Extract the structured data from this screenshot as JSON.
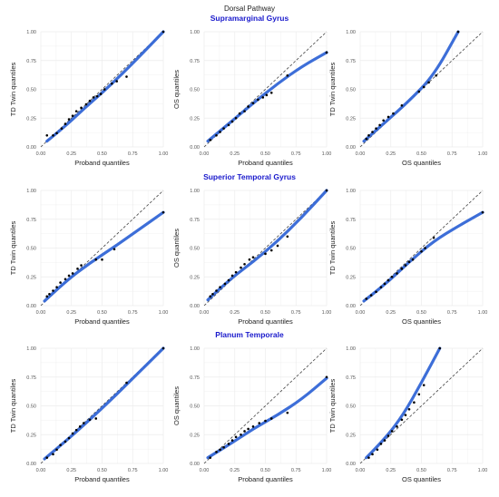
{
  "figure": {
    "title": "Dorsal Pathway",
    "row_titles": [
      "Supramarginal Gyrus",
      "Superior Temporal Gyrus",
      "Planum Temporale"
    ],
    "colors": {
      "curve": "#3366d6",
      "points": "#000000",
      "reference": "#444444",
      "row_title": "#1a1acc",
      "grid": "#ececec",
      "tick_text": "#555555"
    }
  },
  "chart_data": [
    {
      "type": "scatter",
      "row": 0,
      "col": 0,
      "xlabel": "Proband quantiles",
      "ylabel": "TD Twin quantiles",
      "xlim": [
        0,
        1
      ],
      "ylim": [
        0,
        1
      ],
      "xticks": [
        "0.00",
        "0.25",
        "0.50",
        "0.75",
        "1.00"
      ],
      "yticks": [
        "0.00",
        "0.25",
        "0.50",
        "0.75",
        "1.00"
      ],
      "points": [
        [
          0.05,
          0.1
        ],
        [
          0.1,
          0.1
        ],
        [
          0.13,
          0.12
        ],
        [
          0.17,
          0.16
        ],
        [
          0.2,
          0.2
        ],
        [
          0.23,
          0.24
        ],
        [
          0.26,
          0.27
        ],
        [
          0.29,
          0.31
        ],
        [
          0.33,
          0.34
        ],
        [
          0.37,
          0.37
        ],
        [
          0.4,
          0.4
        ],
        [
          0.43,
          0.43
        ],
        [
          0.46,
          0.44
        ],
        [
          0.49,
          0.46
        ],
        [
          0.52,
          0.5
        ],
        [
          0.58,
          0.55
        ],
        [
          0.62,
          0.57
        ],
        [
          0.7,
          0.61
        ],
        [
          1.0,
          1.0
        ]
      ],
      "curve": [
        [
          0.05,
          0.05
        ],
        [
          0.2,
          0.18
        ],
        [
          0.35,
          0.33
        ],
        [
          0.5,
          0.47
        ],
        [
          0.65,
          0.62
        ],
        [
          0.8,
          0.78
        ],
        [
          1.0,
          1.0
        ]
      ],
      "grid": true
    },
    {
      "type": "scatter",
      "row": 0,
      "col": 1,
      "xlabel": "Proband quantiles",
      "ylabel": "OS quantiles",
      "xlim": [
        0,
        1
      ],
      "ylim": [
        0,
        1
      ],
      "xticks": [
        "0.00",
        "0.25",
        "0.50",
        "0.75",
        "1.00"
      ],
      "yticks": [
        "0.00",
        "0.25",
        "0.50",
        "0.75",
        "1.00"
      ],
      "points": [
        [
          0.05,
          0.06
        ],
        [
          0.1,
          0.1
        ],
        [
          0.13,
          0.13
        ],
        [
          0.16,
          0.16
        ],
        [
          0.2,
          0.19
        ],
        [
          0.23,
          0.22
        ],
        [
          0.26,
          0.25
        ],
        [
          0.29,
          0.29
        ],
        [
          0.33,
          0.31
        ],
        [
          0.36,
          0.35
        ],
        [
          0.4,
          0.38
        ],
        [
          0.44,
          0.41
        ],
        [
          0.48,
          0.43
        ],
        [
          0.51,
          0.45
        ],
        [
          0.55,
          0.47
        ],
        [
          0.68,
          0.62
        ],
        [
          1.0,
          0.82
        ]
      ],
      "curve": [
        [
          0.03,
          0.05
        ],
        [
          0.2,
          0.2
        ],
        [
          0.4,
          0.38
        ],
        [
          0.6,
          0.55
        ],
        [
          0.8,
          0.7
        ],
        [
          1.0,
          0.82
        ]
      ],
      "grid": true
    },
    {
      "type": "scatter",
      "row": 0,
      "col": 2,
      "xlabel": "OS quantiles",
      "ylabel": "TD Twin quantiles",
      "xlim": [
        0,
        1
      ],
      "ylim": [
        0,
        1
      ],
      "xticks": [
        "0.00",
        "0.25",
        "0.50",
        "0.75",
        "1.00"
      ],
      "yticks": [
        "0.00",
        "0.25",
        "0.50",
        "0.75",
        "1.00"
      ],
      "points": [
        [
          0.05,
          0.07
        ],
        [
          0.07,
          0.1
        ],
        [
          0.1,
          0.13
        ],
        [
          0.13,
          0.16
        ],
        [
          0.16,
          0.19
        ],
        [
          0.19,
          0.23
        ],
        [
          0.23,
          0.26
        ],
        [
          0.27,
          0.29
        ],
        [
          0.34,
          0.36
        ],
        [
          0.48,
          0.48
        ],
        [
          0.52,
          0.52
        ],
        [
          0.56,
          0.56
        ],
        [
          0.62,
          0.62
        ],
        [
          0.8,
          1.0
        ]
      ],
      "curve": [
        [
          0.03,
          0.05
        ],
        [
          0.2,
          0.21
        ],
        [
          0.4,
          0.4
        ],
        [
          0.6,
          0.62
        ],
        [
          0.8,
          1.0
        ]
      ],
      "grid": true
    },
    {
      "type": "scatter",
      "row": 1,
      "col": 0,
      "xlabel": "Proband quantiles",
      "ylabel": "TD Twin quantiles",
      "xlim": [
        0,
        1
      ],
      "ylim": [
        0,
        1
      ],
      "xticks": [
        "0.00",
        "0.25",
        "0.50",
        "0.75",
        "1.00"
      ],
      "yticks": [
        "0.00",
        "0.25",
        "0.50",
        "0.75",
        "1.00"
      ],
      "points": [
        [
          0.05,
          0.08
        ],
        [
          0.07,
          0.1
        ],
        [
          0.1,
          0.13
        ],
        [
          0.13,
          0.16
        ],
        [
          0.16,
          0.2
        ],
        [
          0.2,
          0.23
        ],
        [
          0.23,
          0.26
        ],
        [
          0.26,
          0.28
        ],
        [
          0.3,
          0.32
        ],
        [
          0.33,
          0.35
        ],
        [
          0.45,
          0.4
        ],
        [
          0.5,
          0.4
        ],
        [
          0.6,
          0.49
        ],
        [
          1.0,
          0.81
        ]
      ],
      "curve": [
        [
          0.03,
          0.04
        ],
        [
          0.2,
          0.21
        ],
        [
          0.4,
          0.37
        ],
        [
          0.6,
          0.51
        ],
        [
          0.8,
          0.66
        ],
        [
          1.0,
          0.81
        ]
      ],
      "grid": true
    },
    {
      "type": "scatter",
      "row": 1,
      "col": 1,
      "xlabel": "Proband quantiles",
      "ylabel": "OS quantiles",
      "xlim": [
        0,
        1
      ],
      "ylim": [
        0,
        1
      ],
      "xticks": [
        "0.00",
        "0.25",
        "0.50",
        "0.75",
        "1.00"
      ],
      "yticks": [
        "0.00",
        "0.25",
        "0.50",
        "0.75",
        "1.00"
      ],
      "points": [
        [
          0.05,
          0.08
        ],
        [
          0.07,
          0.1
        ],
        [
          0.1,
          0.13
        ],
        [
          0.13,
          0.16
        ],
        [
          0.17,
          0.19
        ],
        [
          0.2,
          0.22
        ],
        [
          0.23,
          0.26
        ],
        [
          0.26,
          0.29
        ],
        [
          0.3,
          0.33
        ],
        [
          0.33,
          0.36
        ],
        [
          0.37,
          0.4
        ],
        [
          0.4,
          0.42
        ],
        [
          0.5,
          0.45
        ],
        [
          0.55,
          0.48
        ],
        [
          0.6,
          0.52
        ],
        [
          0.68,
          0.6
        ],
        [
          1.0,
          1.0
        ]
      ],
      "curve": [
        [
          0.03,
          0.05
        ],
        [
          0.2,
          0.22
        ],
        [
          0.4,
          0.38
        ],
        [
          0.6,
          0.56
        ],
        [
          0.8,
          0.77
        ],
        [
          1.0,
          1.0
        ]
      ],
      "grid": true
    },
    {
      "type": "scatter",
      "row": 1,
      "col": 2,
      "xlabel": "OS quantiles",
      "ylabel": "TD Twin quantiles",
      "xlim": [
        0,
        1
      ],
      "ylim": [
        0,
        1
      ],
      "xticks": [
        "0.00",
        "0.25",
        "0.50",
        "0.75",
        "1.00"
      ],
      "yticks": [
        "0.00",
        "0.25",
        "0.50",
        "0.75",
        "1.00"
      ],
      "points": [
        [
          0.05,
          0.06
        ],
        [
          0.09,
          0.09
        ],
        [
          0.13,
          0.12
        ],
        [
          0.17,
          0.16
        ],
        [
          0.2,
          0.19
        ],
        [
          0.23,
          0.22
        ],
        [
          0.26,
          0.25
        ],
        [
          0.3,
          0.28
        ],
        [
          0.34,
          0.32
        ],
        [
          0.37,
          0.35
        ],
        [
          0.4,
          0.38
        ],
        [
          0.43,
          0.4
        ],
        [
          0.5,
          0.47
        ],
        [
          0.53,
          0.5
        ],
        [
          0.6,
          0.59
        ],
        [
          1.0,
          0.81
        ]
      ],
      "curve": [
        [
          0.03,
          0.04
        ],
        [
          0.2,
          0.18
        ],
        [
          0.4,
          0.38
        ],
        [
          0.6,
          0.56
        ],
        [
          0.8,
          0.69
        ],
        [
          1.0,
          0.81
        ]
      ],
      "grid": true
    },
    {
      "type": "scatter",
      "row": 2,
      "col": 0,
      "xlabel": "Proband quantiles",
      "ylabel": "TD Twin quantiles",
      "xlim": [
        0,
        1
      ],
      "ylim": [
        0,
        1
      ],
      "xticks": [
        "0.00",
        "0.25",
        "0.50",
        "0.75",
        "1.00"
      ],
      "yticks": [
        "0.00",
        "0.25",
        "0.50",
        "0.75",
        "1.00"
      ],
      "points": [
        [
          0.05,
          0.05
        ],
        [
          0.1,
          0.08
        ],
        [
          0.13,
          0.12
        ],
        [
          0.16,
          0.16
        ],
        [
          0.2,
          0.19
        ],
        [
          0.23,
          0.22
        ],
        [
          0.26,
          0.26
        ],
        [
          0.29,
          0.29
        ],
        [
          0.32,
          0.32
        ],
        [
          0.35,
          0.35
        ],
        [
          0.4,
          0.38
        ],
        [
          0.45,
          0.39
        ],
        [
          0.7,
          0.7
        ],
        [
          1.0,
          1.0
        ]
      ],
      "curve": [
        [
          0.03,
          0.04
        ],
        [
          0.2,
          0.19
        ],
        [
          0.4,
          0.38
        ],
        [
          0.6,
          0.58
        ],
        [
          0.8,
          0.79
        ],
        [
          1.0,
          1.0
        ]
      ],
      "grid": true
    },
    {
      "type": "scatter",
      "row": 2,
      "col": 1,
      "xlabel": "Proband quantiles",
      "ylabel": "OS quantiles",
      "xlim": [
        0,
        1
      ],
      "ylim": [
        0,
        1
      ],
      "xticks": [
        "0.00",
        "0.25",
        "0.50",
        "0.75",
        "1.00"
      ],
      "yticks": [
        "0.00",
        "0.25",
        "0.50",
        "0.75",
        "1.00"
      ],
      "points": [
        [
          0.05,
          0.05
        ],
        [
          0.1,
          0.1
        ],
        [
          0.13,
          0.12
        ],
        [
          0.16,
          0.14
        ],
        [
          0.2,
          0.17
        ],
        [
          0.23,
          0.2
        ],
        [
          0.26,
          0.23
        ],
        [
          0.3,
          0.25
        ],
        [
          0.33,
          0.28
        ],
        [
          0.36,
          0.3
        ],
        [
          0.4,
          0.32
        ],
        [
          0.45,
          0.35
        ],
        [
          0.5,
          0.37
        ],
        [
          0.55,
          0.39
        ],
        [
          0.68,
          0.44
        ],
        [
          1.0,
          0.75
        ]
      ],
      "curve": [
        [
          0.03,
          0.05
        ],
        [
          0.2,
          0.16
        ],
        [
          0.4,
          0.3
        ],
        [
          0.6,
          0.42
        ],
        [
          0.8,
          0.56
        ],
        [
          1.0,
          0.74
        ]
      ],
      "grid": true
    },
    {
      "type": "scatter",
      "row": 2,
      "col": 2,
      "xlabel": "OS quantiles",
      "ylabel": "TD Twin quantiles",
      "xlim": [
        0,
        1
      ],
      "ylim": [
        0,
        1
      ],
      "xticks": [
        "0.00",
        "0.25",
        "0.50",
        "0.75",
        "1.00"
      ],
      "yticks": [
        "0.00",
        "0.25",
        "0.50",
        "0.75",
        "1.00"
      ],
      "points": [
        [
          0.07,
          0.05
        ],
        [
          0.1,
          0.08
        ],
        [
          0.14,
          0.12
        ],
        [
          0.17,
          0.17
        ],
        [
          0.2,
          0.2
        ],
        [
          0.23,
          0.24
        ],
        [
          0.26,
          0.28
        ],
        [
          0.3,
          0.32
        ],
        [
          0.34,
          0.38
        ],
        [
          0.37,
          0.42
        ],
        [
          0.4,
          0.47
        ],
        [
          0.44,
          0.53
        ],
        [
          0.48,
          0.6
        ],
        [
          0.52,
          0.68
        ],
        [
          0.65,
          1.0
        ]
      ],
      "curve": [
        [
          0.05,
          0.05
        ],
        [
          0.2,
          0.21
        ],
        [
          0.35,
          0.42
        ],
        [
          0.5,
          0.7
        ],
        [
          0.65,
          1.0
        ]
      ],
      "grid": true
    }
  ]
}
